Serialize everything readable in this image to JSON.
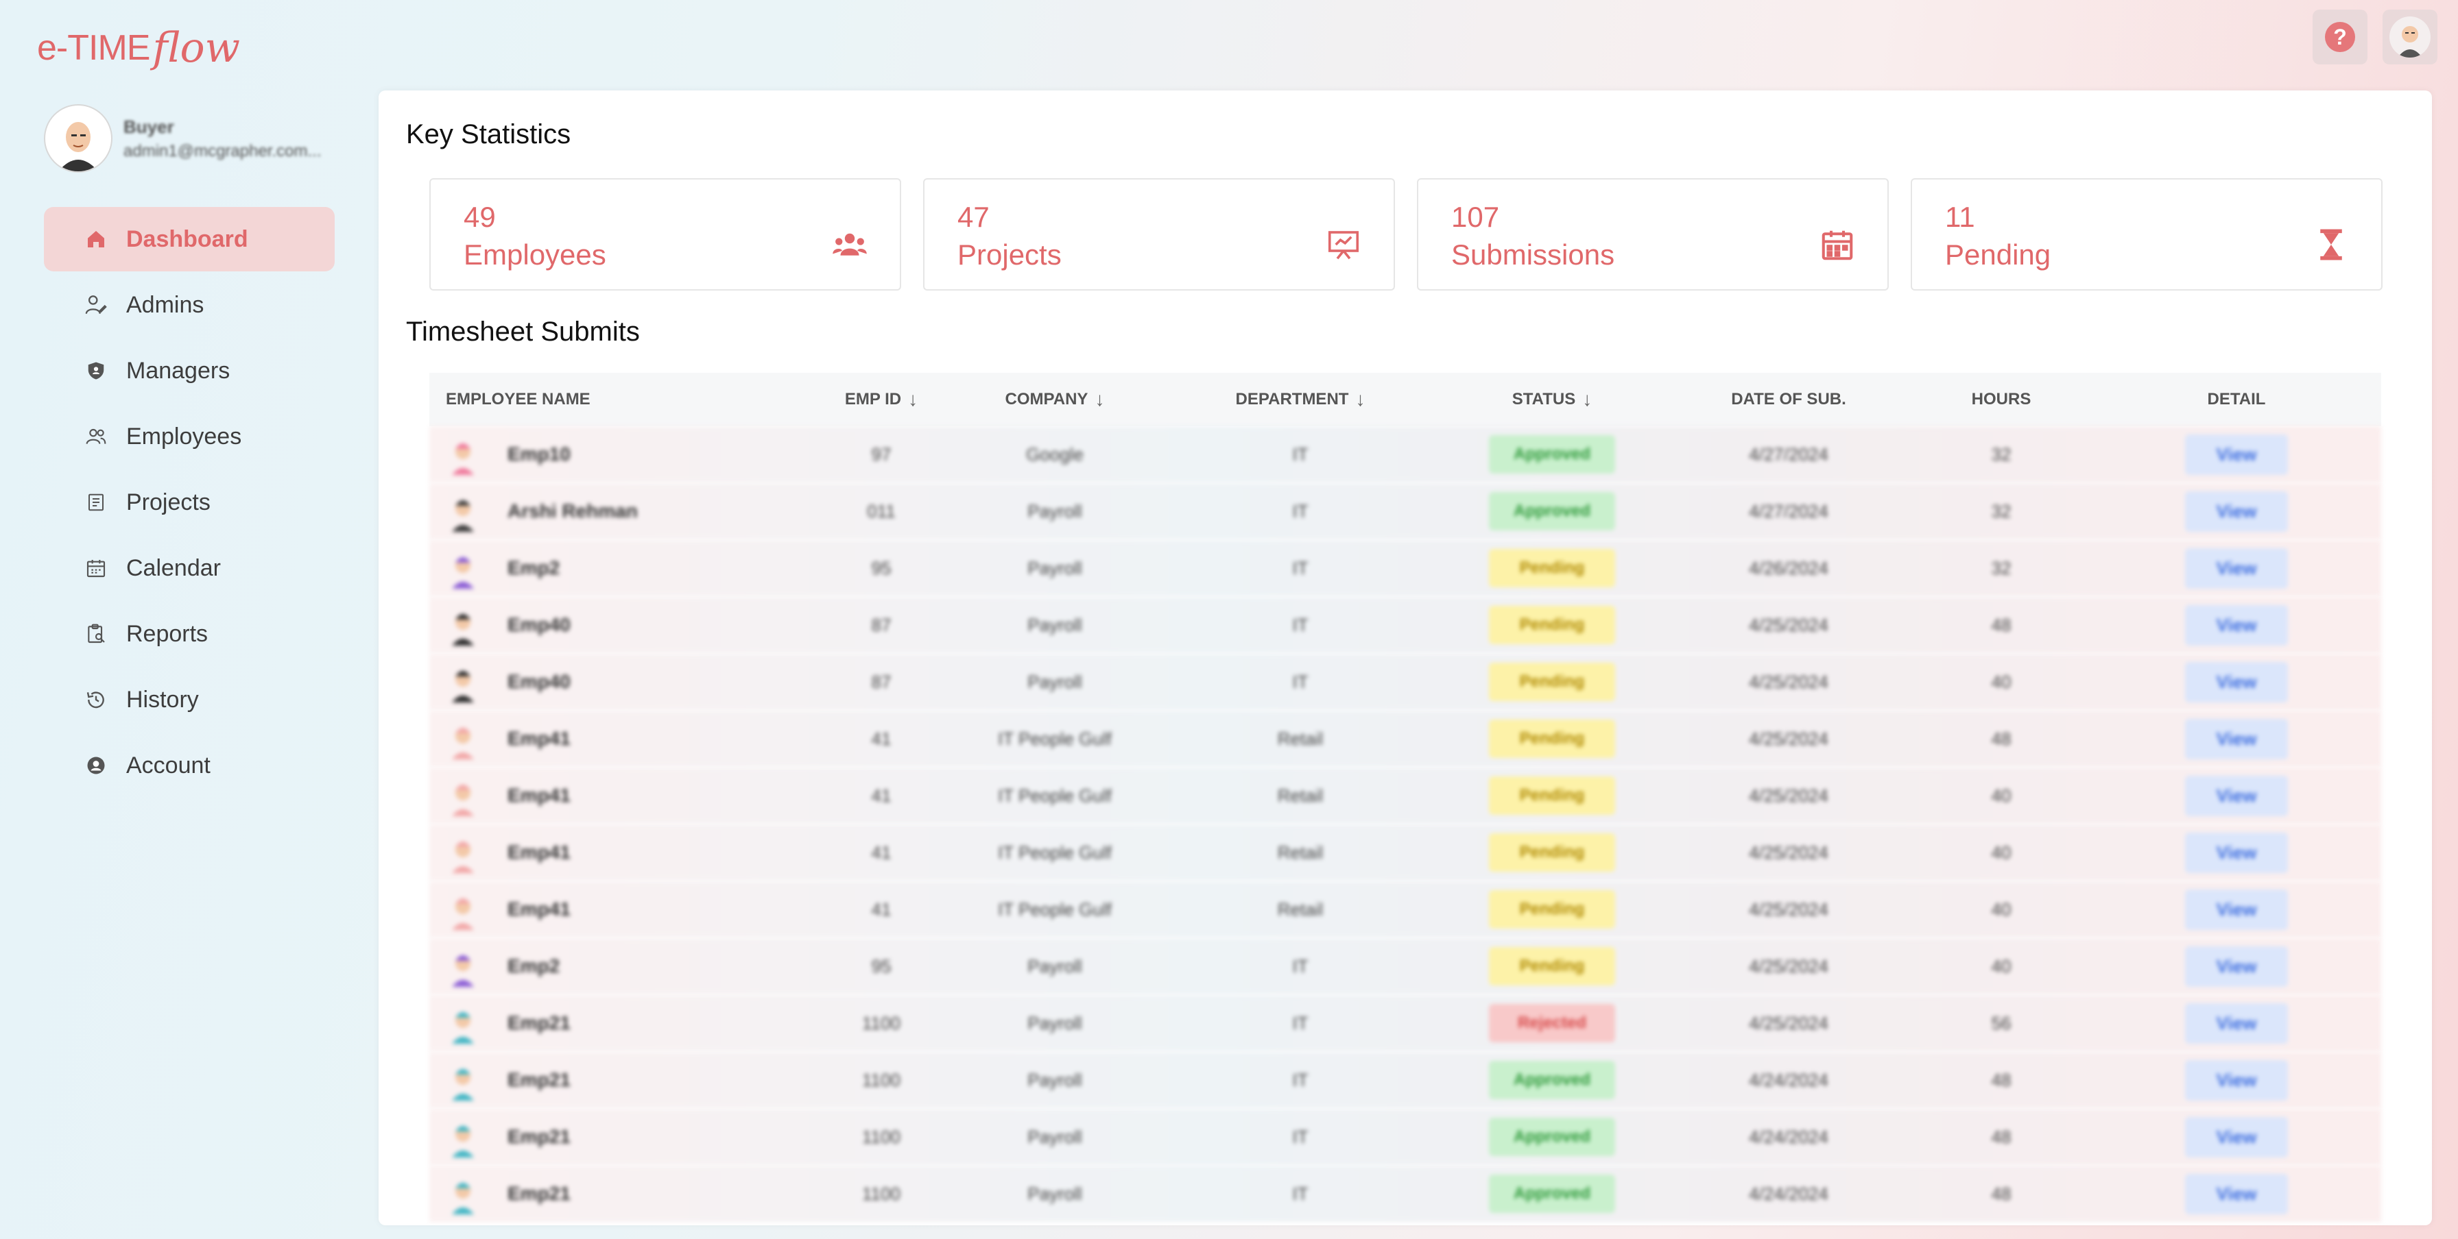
{
  "app": {
    "logo_main": "e-TIME",
    "logo_script": "flow"
  },
  "header": {
    "help_icon": "question-circle-icon",
    "user_icon": "avatar"
  },
  "profile": {
    "role": "Buyer",
    "email": "admin1@mcgrapher.com..."
  },
  "nav": [
    {
      "label": "Dashboard",
      "icon": "home-icon",
      "active": true
    },
    {
      "label": "Admins",
      "icon": "user-edit-icon",
      "active": false
    },
    {
      "label": "Managers",
      "icon": "shield-icon",
      "active": false
    },
    {
      "label": "Employees",
      "icon": "users-icon",
      "active": false
    },
    {
      "label": "Projects",
      "icon": "document-icon",
      "active": false
    },
    {
      "label": "Calendar",
      "icon": "calendar-icon",
      "active": false
    },
    {
      "label": "Reports",
      "icon": "report-search-icon",
      "active": false
    },
    {
      "label": "History",
      "icon": "history-icon",
      "active": false
    },
    {
      "label": "Account",
      "icon": "account-circle-icon",
      "active": false
    }
  ],
  "key_stats": {
    "title": "Key Statistics",
    "cards": [
      {
        "value": "49",
        "label": "Employees",
        "icon": "users-group-icon"
      },
      {
        "value": "47",
        "label": "Projects",
        "icon": "presentation-icon"
      },
      {
        "value": "107",
        "label": "Submissions",
        "icon": "calendar-icon"
      },
      {
        "value": "11",
        "label": "Pending",
        "icon": "hourglass-icon"
      }
    ]
  },
  "timesheet": {
    "title": "Timesheet Submits",
    "columns": [
      {
        "label": "EMPLOYEE NAME",
        "sortable": false
      },
      {
        "label": "EMP ID",
        "sortable": true
      },
      {
        "label": "COMPANY",
        "sortable": true
      },
      {
        "label": "DEPARTMENT",
        "sortable": true
      },
      {
        "label": "STATUS",
        "sortable": true
      },
      {
        "label": "DATE OF SUB.",
        "sortable": false
      },
      {
        "label": "HOURS",
        "sortable": false
      },
      {
        "label": "DETAIL",
        "sortable": false
      }
    ],
    "rows": [
      {
        "name": "Emp10",
        "id": "97",
        "company": "Google",
        "dept": "IT",
        "status": "Approved",
        "date": "4/27/2024",
        "hours": "32",
        "detail": "View",
        "avatar_color": "#f07a9c"
      },
      {
        "name": "Arshi Rehman",
        "id": "011",
        "company": "Payroll",
        "dept": "IT",
        "status": "Approved",
        "date": "4/27/2024",
        "hours": "32",
        "detail": "View",
        "avatar_color": "#3a3a3a"
      },
      {
        "name": "Emp2",
        "id": "95",
        "company": "Payroll",
        "dept": "IT",
        "status": "Pending",
        "date": "4/26/2024",
        "hours": "32",
        "detail": "View",
        "avatar_color": "#8a5cd6"
      },
      {
        "name": "Emp40",
        "id": "87",
        "company": "Payroll",
        "dept": "IT",
        "status": "Pending",
        "date": "4/25/2024",
        "hours": "48",
        "detail": "View",
        "avatar_color": "#2b2b2b"
      },
      {
        "name": "Emp40",
        "id": "87",
        "company": "Payroll",
        "dept": "IT",
        "status": "Pending",
        "date": "4/25/2024",
        "hours": "40",
        "detail": "View",
        "avatar_color": "#2b2b2b"
      },
      {
        "name": "Emp41",
        "id": "41",
        "company": "IT People Gulf",
        "dept": "Retail",
        "status": "Pending",
        "date": "4/25/2024",
        "hours": "48",
        "detail": "View",
        "avatar_color": "#f2a7a7"
      },
      {
        "name": "Emp41",
        "id": "41",
        "company": "IT People Gulf",
        "dept": "Retail",
        "status": "Pending",
        "date": "4/25/2024",
        "hours": "40",
        "detail": "View",
        "avatar_color": "#f2a7a7"
      },
      {
        "name": "Emp41",
        "id": "41",
        "company": "IT People Gulf",
        "dept": "Retail",
        "status": "Pending",
        "date": "4/25/2024",
        "hours": "40",
        "detail": "View",
        "avatar_color": "#f2a7a7"
      },
      {
        "name": "Emp41",
        "id": "41",
        "company": "IT People Gulf",
        "dept": "Retail",
        "status": "Pending",
        "date": "4/25/2024",
        "hours": "40",
        "detail": "View",
        "avatar_color": "#f2a7a7"
      },
      {
        "name": "Emp2",
        "id": "95",
        "company": "Payroll",
        "dept": "IT",
        "status": "Pending",
        "date": "4/25/2024",
        "hours": "40",
        "detail": "View",
        "avatar_color": "#8a5cd6"
      },
      {
        "name": "Emp21",
        "id": "1100",
        "company": "Payroll",
        "dept": "IT",
        "status": "Rejected",
        "date": "4/25/2024",
        "hours": "56",
        "detail": "View",
        "avatar_color": "#3fb5c4"
      },
      {
        "name": "Emp21",
        "id": "1100",
        "company": "Payroll",
        "dept": "IT",
        "status": "Approved",
        "date": "4/24/2024",
        "hours": "48",
        "detail": "View",
        "avatar_color": "#3fb5c4"
      },
      {
        "name": "Emp21",
        "id": "1100",
        "company": "Payroll",
        "dept": "IT",
        "status": "Approved",
        "date": "4/24/2024",
        "hours": "48",
        "detail": "View",
        "avatar_color": "#3fb5c4"
      },
      {
        "name": "Emp21",
        "id": "1100",
        "company": "Payroll",
        "dept": "IT",
        "status": "Approved",
        "date": "4/24/2024",
        "hours": "48",
        "detail": "View",
        "avatar_color": "#3fb5c4"
      }
    ]
  },
  "colors": {
    "accent": "#e0686a",
    "active_bg": "#f3d6d6",
    "approved": "#2e9a3a",
    "pending": "#b08a00",
    "rejected": "#d84a4a",
    "view": "#3f6fe0"
  }
}
